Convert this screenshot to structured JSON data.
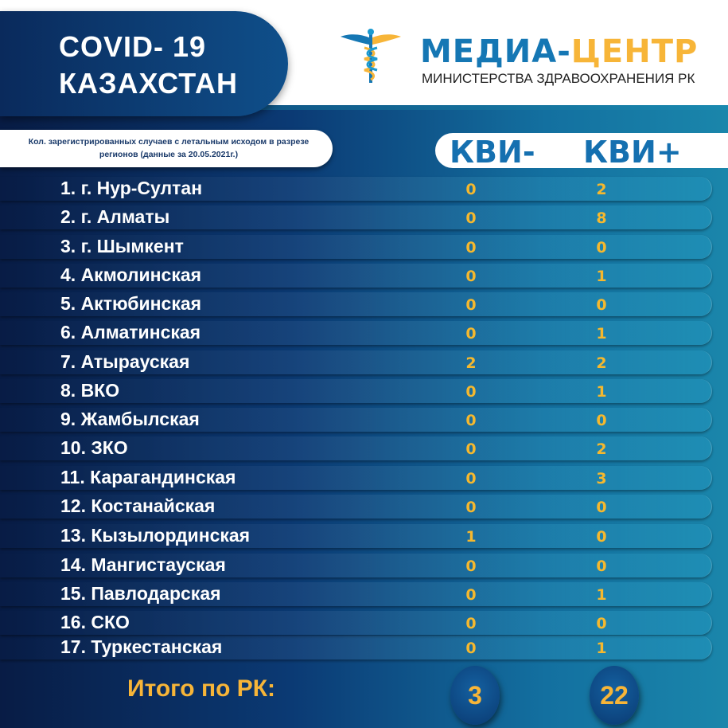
{
  "header": {
    "title_line1": "COVID- 19",
    "title_line2": "КАЗАХСТАН",
    "logo_main_a": "МЕДИА-",
    "logo_main_b": "ЦЕНТР",
    "logo_sub": "МИНИСТЕРСТВА ЗДРАВООХРАНЕНИЯ РК"
  },
  "caption": "Кол. зарегистрированных случаев с летальным исходом в разрезе регионов (данные за 20.05.2021г.)",
  "columns": [
    "КВИ-",
    "КВИ+"
  ],
  "rows": [
    {
      "name": "1. г. Нур-Султан",
      "kvi_neg": "0",
      "kvi_pos": "2"
    },
    {
      "name": "2. г. Алматы",
      "kvi_neg": "0",
      "kvi_pos": "8"
    },
    {
      "name": "3. г. Шымкент",
      "kvi_neg": "0",
      "kvi_pos": "0"
    },
    {
      "name": "4. Акмолинская",
      "kvi_neg": "0",
      "kvi_pos": "1"
    },
    {
      "name": "5. Актюбинская",
      "kvi_neg": "0",
      "kvi_pos": "0"
    },
    {
      "name": "6. Алматинская",
      "kvi_neg": "0",
      "kvi_pos": "1"
    },
    {
      "name": "7. Атырауская",
      "kvi_neg": "2",
      "kvi_pos": "2"
    },
    {
      "name": "8. ВКО",
      "kvi_neg": "0",
      "kvi_pos": "1"
    },
    {
      "name": "9. Жамбылская",
      "kvi_neg": "0",
      "kvi_pos": "0"
    },
    {
      "name": "10. ЗКО",
      "kvi_neg": "0",
      "kvi_pos": "2"
    },
    {
      "name": "11. Карагандинская",
      "kvi_neg": "0",
      "kvi_pos": "3"
    },
    {
      "name": "12. Костанайская",
      "kvi_neg": "0",
      "kvi_pos": "0"
    },
    {
      "name": "13. Кызылординская",
      "kvi_neg": "1",
      "kvi_pos": "0"
    },
    {
      "name": "14. Мангистауская",
      "kvi_neg": "0",
      "kvi_pos": "0"
    },
    {
      "name": "15. Павлодарская",
      "kvi_neg": "0",
      "kvi_pos": "1"
    },
    {
      "name": "16. СКО",
      "kvi_neg": "0",
      "kvi_pos": "0"
    },
    {
      "name": "17. Туркестанская",
      "kvi_neg": "0",
      "kvi_pos": "1"
    }
  ],
  "total": {
    "label": "Итого по РК:",
    "kvi_neg": "3",
    "kvi_pos": "22"
  },
  "colors": {
    "accent": "#f7b538",
    "brand_blue": "#1577b4",
    "navy": "#081c45"
  },
  "icons": {
    "logo": "caduceus-icon"
  }
}
